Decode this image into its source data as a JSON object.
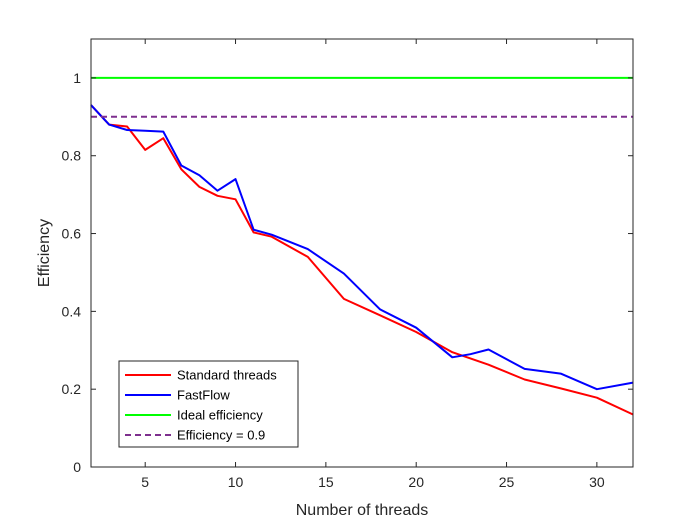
{
  "chart_data": {
    "type": "line",
    "title": "",
    "xlabel": "Number of threads",
    "ylabel": "Efficiency",
    "xlim": [
      2,
      32
    ],
    "ylim": [
      0,
      1.1
    ],
    "xticks": [
      5,
      10,
      15,
      20,
      25,
      30
    ],
    "yticks": [
      0,
      0.2,
      0.4,
      0.6,
      0.8,
      1
    ],
    "xtick_labels": [
      "5",
      "10",
      "15",
      "20",
      "25",
      "30"
    ],
    "ytick_labels": [
      "0",
      "0.2",
      "0.4",
      "0.6",
      "0.8",
      "1"
    ],
    "grid": false,
    "legend_position": "bottom-left",
    "series": [
      {
        "name": "Standard threads",
        "color": "#ff0000",
        "style": "solid",
        "x": [
          2,
          3,
          4,
          5,
          6,
          7,
          8,
          9,
          10,
          11,
          12,
          14,
          16,
          18,
          20,
          22,
          24,
          26,
          28,
          30,
          32
        ],
        "y": [
          0.93,
          0.88,
          0.875,
          0.815,
          0.845,
          0.765,
          0.72,
          0.697,
          0.688,
          0.603,
          0.592,
          0.54,
          0.432,
          0.39,
          0.347,
          0.295,
          0.263,
          0.225,
          0.202,
          0.178,
          0.135
        ]
      },
      {
        "name": "FastFlow",
        "color": "#0000ff",
        "style": "solid",
        "x": [
          2,
          3,
          4,
          5,
          6,
          7,
          8,
          9,
          10,
          11,
          12,
          14,
          16,
          18,
          20,
          22,
          23,
          24,
          26,
          28,
          30,
          32
        ],
        "y": [
          0.93,
          0.88,
          0.866,
          0.864,
          0.862,
          0.775,
          0.75,
          0.71,
          0.74,
          0.61,
          0.597,
          0.56,
          0.497,
          0.405,
          0.358,
          0.282,
          0.29,
          0.302,
          0.252,
          0.24,
          0.2,
          0.217
        ]
      },
      {
        "name": "Ideal efficiency",
        "color": "#00ff00",
        "style": "solid",
        "x": [
          2,
          32
        ],
        "y": [
          1,
          1
        ]
      },
      {
        "name": "Efficiency = 0.9",
        "color": "#7e2f8e",
        "style": "dashed",
        "x": [
          2,
          32
        ],
        "y": [
          0.9,
          0.9
        ]
      }
    ]
  }
}
